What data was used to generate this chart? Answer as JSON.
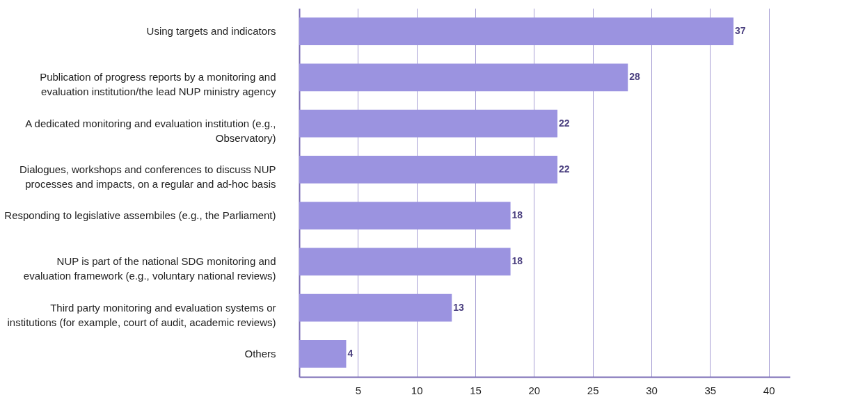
{
  "chart_data": {
    "type": "bar",
    "orientation": "horizontal",
    "categories": [
      "Using targets and indicators",
      "Publication of progress reports by a monitoring and\nevaluation institution/the lead NUP ministry agency",
      "A dedicated monitoring and evaluation institution (e.g.,\nObservatory)",
      "Dialogues, workshops and conferences to discuss NUP\nprocesses and impacts, on a regular and ad-hoc basis",
      "Responding to legislative assembiles (e.g., the Parliament)",
      "NUP is part of the national SDG monitoring and\nevaluation framework (e.g., voluntary national reviews)",
      "Third party monitoring and evaluation systems or\ninstitutions (for example, court of audit, academic reviews)",
      "Others"
    ],
    "values": [
      37,
      28,
      22,
      22,
      18,
      18,
      13,
      4
    ],
    "color": "#9b93e0",
    "data_labels": true,
    "grid": "x",
    "xlim": [
      0,
      41.8
    ],
    "xticks": [
      5,
      10,
      15,
      20,
      25,
      30,
      35,
      40
    ]
  }
}
